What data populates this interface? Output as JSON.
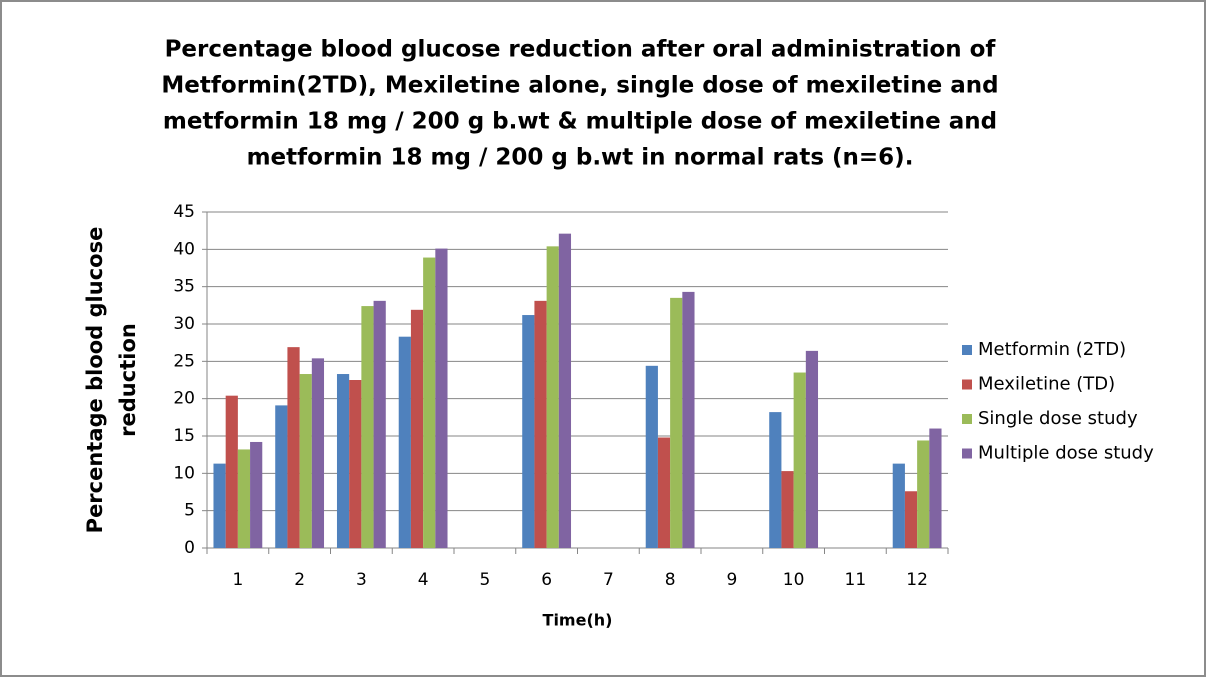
{
  "chart_data": {
    "type": "bar",
    "title": [
      "Percentage blood glucose reduction after oral administration of",
      "Metformin(2TD), Mexiletine alone, single dose of mexiletine and",
      "metformin 18 mg / 200 g b.wt & multiple dose of mexiletine and",
      "metformin 18 mg / 200 g b.wt in normal rats (n=6)."
    ],
    "ylabel": [
      "Percentage blood glucose",
      "reduction"
    ],
    "xlabel": "Time(h)",
    "categories": [
      "1",
      "2",
      "3",
      "4",
      "5",
      "6",
      "7",
      "8",
      "9",
      "10",
      "11",
      "12"
    ],
    "series": [
      {
        "name": "Metformin (2TD)",
        "color": "#4f81bd",
        "values": [
          11.3,
          19.1,
          23.3,
          28.3,
          null,
          31.2,
          null,
          24.4,
          null,
          18.2,
          null,
          11.3
        ]
      },
      {
        "name": "Mexiletine (TD)",
        "color": "#c0504d",
        "values": [
          20.4,
          26.9,
          22.5,
          31.9,
          null,
          33.1,
          null,
          14.8,
          null,
          10.3,
          null,
          7.6
        ]
      },
      {
        "name": "Single dose study",
        "color": "#9bbb59",
        "values": [
          13.2,
          23.3,
          32.4,
          38.9,
          null,
          40.4,
          null,
          33.5,
          null,
          23.5,
          null,
          14.4
        ]
      },
      {
        "name": "Multiple dose study",
        "color": "#8064a2",
        "values": [
          14.2,
          25.4,
          33.1,
          40.1,
          null,
          42.1,
          null,
          34.3,
          null,
          26.4,
          null,
          16.0
        ]
      }
    ],
    "ylim": [
      0,
      45
    ],
    "yticks": [
      0,
      5,
      10,
      15,
      20,
      25,
      30,
      35,
      40,
      45
    ],
    "grid": true,
    "legend": "right"
  }
}
